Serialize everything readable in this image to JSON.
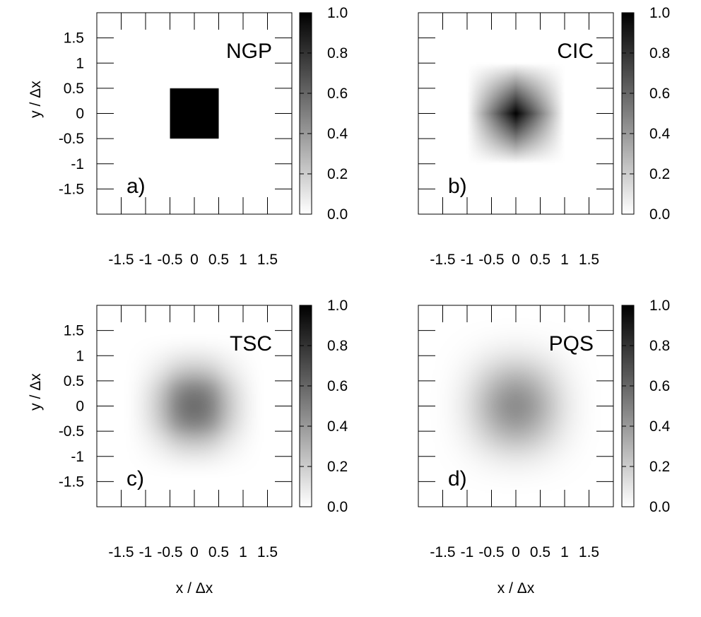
{
  "chart_data": [
    {
      "type": "heatmap",
      "panel_label": "a)",
      "scheme_label": "NGP",
      "xlabel": "",
      "ylabel": "y / Δx",
      "x_ticks": [
        "-1.5",
        "-1",
        "-0.5",
        "0",
        "0.5",
        "1",
        "1.5"
      ],
      "y_ticks": [
        "1.5",
        "1",
        "0.5",
        "0",
        "-0.5",
        "-1",
        "-1.5"
      ],
      "xlim": [
        -2,
        2
      ],
      "ylim": [
        -2,
        2
      ],
      "colorbar_ticks": [
        "1.0",
        "0.8",
        "0.6",
        "0.4",
        "0.2",
        "0.0"
      ],
      "colorbar_range": [
        0,
        1
      ],
      "kernel": "ngp",
      "peak_value": 1.0
    },
    {
      "type": "heatmap",
      "panel_label": "b)",
      "scheme_label": "CIC",
      "xlabel": "",
      "ylabel": "",
      "x_ticks": [
        "-1.5",
        "-1",
        "-0.5",
        "0",
        "0.5",
        "1",
        "1.5"
      ],
      "y_ticks": [],
      "xlim": [
        -2,
        2
      ],
      "ylim": [
        -2,
        2
      ],
      "colorbar_ticks": [
        "1.0",
        "0.8",
        "0.6",
        "0.4",
        "0.2",
        "0.0"
      ],
      "colorbar_range": [
        0,
        1
      ],
      "kernel": "cic",
      "peak_value": 1.0
    },
    {
      "type": "heatmap",
      "panel_label": "c)",
      "scheme_label": "TSC",
      "xlabel": "x / Δx",
      "ylabel": "y / Δx",
      "x_ticks": [
        "-1.5",
        "-1",
        "-0.5",
        "0",
        "0.5",
        "1",
        "1.5"
      ],
      "y_ticks": [
        "1.5",
        "1",
        "0.5",
        "0",
        "-0.5",
        "-1",
        "-1.5"
      ],
      "xlim": [
        -2,
        2
      ],
      "ylim": [
        -2,
        2
      ],
      "colorbar_ticks": [
        "1.0",
        "0.8",
        "0.6",
        "0.4",
        "0.2",
        "0.0"
      ],
      "colorbar_range": [
        0,
        1
      ],
      "kernel": "tsc",
      "peak_value": 0.56
    },
    {
      "type": "heatmap",
      "panel_label": "d)",
      "scheme_label": "PQS",
      "xlabel": "x / Δx",
      "ylabel": "",
      "x_ticks": [
        "-1.5",
        "-1",
        "-0.5",
        "0",
        "0.5",
        "1",
        "1.5"
      ],
      "y_ticks": [],
      "xlim": [
        -2,
        2
      ],
      "ylim": [
        -2,
        2
      ],
      "colorbar_ticks": [
        "1.0",
        "0.8",
        "0.6",
        "0.4",
        "0.2",
        "0.0"
      ],
      "colorbar_range": [
        0,
        1
      ],
      "kernel": "pqs",
      "peak_value": 0.44
    }
  ]
}
